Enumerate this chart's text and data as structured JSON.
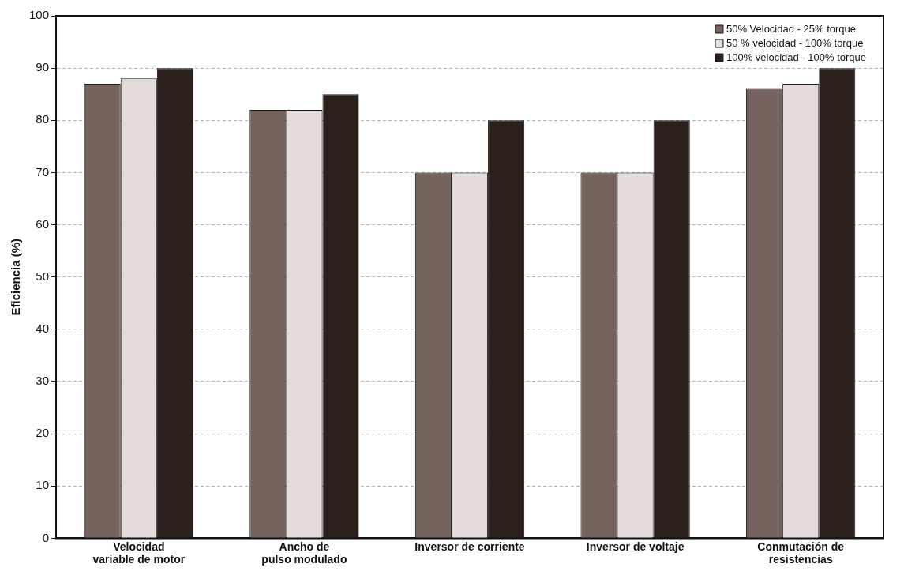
{
  "chart_data": {
    "type": "bar",
    "ylabel": "Eficiencia (%)",
    "categories": [
      "Velocidad variable de motor",
      "Ancho de pulso modulado",
      "Inversor de corriente",
      "Inversor de voltaje",
      "Conmutación de resistencias"
    ],
    "series": [
      {
        "name": "50% Velocidad - 25% torque",
        "color": "#75625c",
        "values": [
          87,
          82,
          70,
          70,
          86
        ]
      },
      {
        "name": "50 % velocidad - 100% torque",
        "color": "#e3dcda",
        "values": [
          88,
          82,
          70,
          70,
          87
        ]
      },
      {
        "name": "100% velocidad - 100% torque",
        "color": "#2b1f1c",
        "values": [
          90,
          85,
          80,
          80,
          90
        ]
      }
    ],
    "ylim": [
      0,
      100
    ],
    "yticks": [
      0,
      10,
      20,
      30,
      40,
      50,
      60,
      70,
      80,
      90,
      100
    ],
    "grid": "y",
    "legend": "top right"
  }
}
